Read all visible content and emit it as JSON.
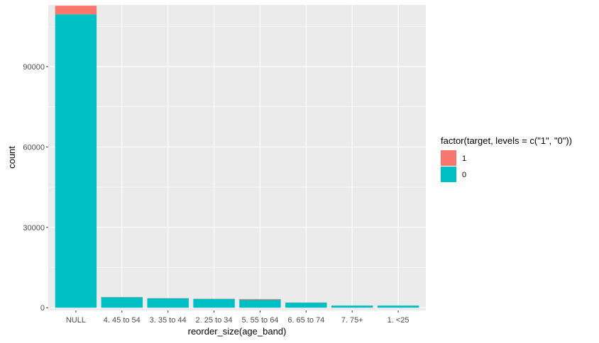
{
  "chart_data": {
    "type": "bar",
    "stacked": true,
    "xlabel": "reorder_size(age_band)",
    "ylabel": "count",
    "categories": [
      "NULL",
      "4. 45 to 54",
      "3. 35 to 44",
      "2. 25 to 34",
      "5. 55 to 64",
      "6. 65 to 74",
      "7. 75+",
      "1. <25"
    ],
    "series": [
      {
        "name": "0",
        "color": "#00BFC4",
        "values": [
          109500,
          3900,
          3500,
          3300,
          3000,
          1900,
          800,
          800
        ]
      },
      {
        "name": "1",
        "color": "#F8766D",
        "values": [
          3200,
          80,
          70,
          60,
          250,
          40,
          20,
          20
        ]
      }
    ],
    "stack_order": [
      "0",
      "1"
    ],
    "ylim": [
      -1000,
      113000
    ],
    "yticks": [
      0,
      30000,
      60000,
      90000
    ],
    "ytick_labels": [
      "0",
      "30000",
      "60000",
      "90000"
    ],
    "grid": true,
    "panel_background": "#EBEBEB",
    "legend": {
      "title": "factor(target, levels = c(\"1\", \"0\"))",
      "placement": "right",
      "entries": [
        {
          "label": "1",
          "color": "#F8766D"
        },
        {
          "label": "0",
          "color": "#00BFC4"
        }
      ]
    }
  }
}
